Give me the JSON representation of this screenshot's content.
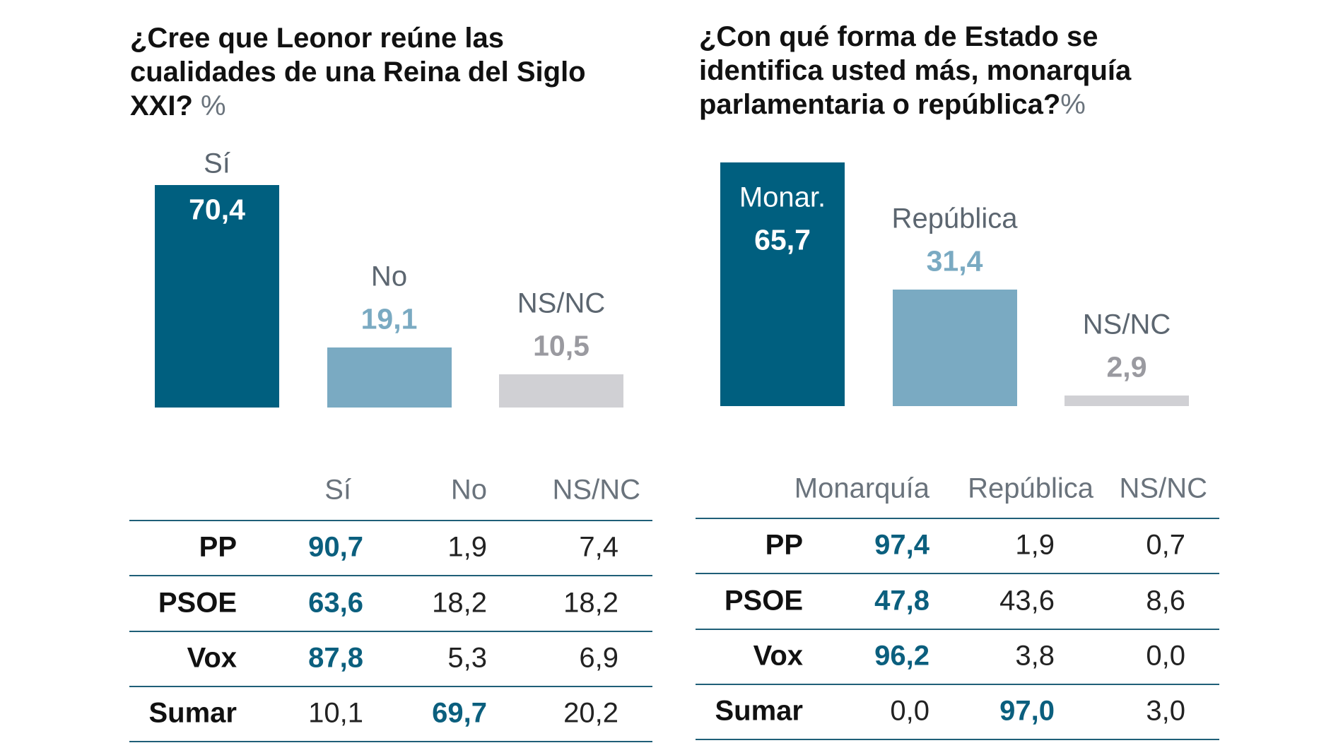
{
  "colors": {
    "primary": "#005f7f",
    "secondary": "#7aaac2",
    "neutral": "#d0d0d4",
    "neutral_text": "#9a9aa0"
  },
  "chart_data": [
    {
      "type": "bar",
      "title": "¿Cree que Leonor reúne las cualidades de una Reina del Siglo XXI?",
      "unit": "%",
      "categories": [
        "Sí",
        "No",
        "NS/NC"
      ],
      "values": [
        70.4,
        19.1,
        10.5
      ],
      "value_labels": [
        "70,4",
        "19,1",
        "10,5"
      ],
      "table": {
        "columns": [
          "Sí",
          "No",
          "NS/NC"
        ],
        "rows": [
          {
            "party": "PP",
            "values": [
              "90,7",
              "1,9",
              "7,4"
            ],
            "highlight": 0
          },
          {
            "party": "PSOE",
            "values": [
              "63,6",
              "18,2",
              "18,2"
            ],
            "highlight": 0
          },
          {
            "party": "Vox",
            "values": [
              "87,8",
              "5,3",
              "6,9"
            ],
            "highlight": 0
          },
          {
            "party": "Sumar",
            "values": [
              "10,1",
              "69,7",
              "20,2"
            ],
            "highlight": 1
          }
        ]
      }
    },
    {
      "type": "bar",
      "title": "¿Con qué forma de Estado se identifica usted más, monarquía parlamentaria o república?",
      "unit": "%",
      "categories": [
        "Monar.",
        "República",
        "NS/NC"
      ],
      "values": [
        65.7,
        31.4,
        2.9
      ],
      "value_labels": [
        "65,7",
        "31,4",
        "2,9"
      ],
      "table": {
        "columns": [
          "Monarquía",
          "República",
          "NS/NC"
        ],
        "rows": [
          {
            "party": "PP",
            "values": [
              "97,4",
              "1,9",
              "0,7"
            ],
            "highlight": 0
          },
          {
            "party": "PSOE",
            "values": [
              "47,8",
              "43,6",
              "8,6"
            ],
            "highlight": 0
          },
          {
            "party": "Vox",
            "values": [
              "96,2",
              "3,8",
              "0,0"
            ],
            "highlight": 0
          },
          {
            "party": "Sumar",
            "values": [
              "0,0",
              "97,0",
              "3,0"
            ],
            "highlight": 1
          }
        ]
      }
    }
  ],
  "titles": [
    {
      "lines": [
        "¿Cree que Leonor reúne las",
        "cualidades de una Reina del Siglo",
        "XXI?"
      ],
      "unit": " %"
    },
    {
      "lines": [
        "¿Con qué forma de Estado se",
        "identifica usted más, monarquía",
        "parlamentaria o república?"
      ],
      "unit": "%"
    }
  ]
}
